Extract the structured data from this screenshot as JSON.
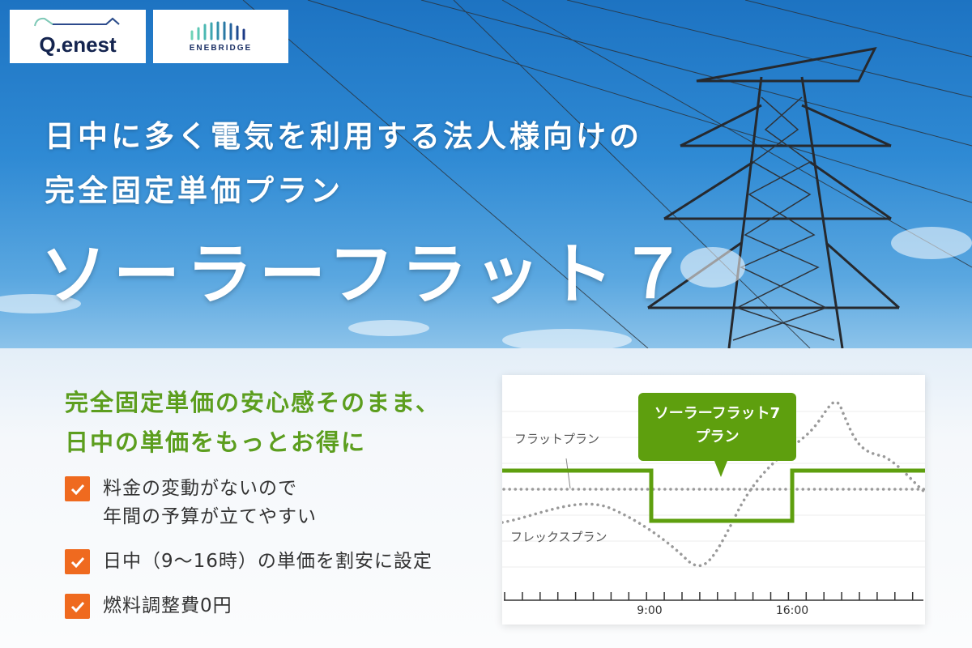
{
  "logos": {
    "qenest": "Q.enest",
    "enebridge": "ENEBRIDGE"
  },
  "headline": {
    "line1": "日中に多く電気を利用する法人様向けの",
    "line2": "完全固定単価プラン"
  },
  "title": "ソーラーフラット７",
  "subheadline": {
    "line1": "完全固定単価の安心感そのまま、",
    "line2": "日中の単価をもっとお得に"
  },
  "features": [
    {
      "line1": "料金の変動がないので",
      "line2": "年間の予算が立てやすい"
    },
    {
      "line1": "日中（9〜16時）の単価を割安に設定"
    },
    {
      "line1": "燃料調整費0円"
    }
  ],
  "colors": {
    "accent_green": "#5c9e1e",
    "check_orange": "#ef6a1f",
    "sky_blue": "#2f8ad4"
  },
  "chart": {
    "callout_line1": "ソーラーフラット7",
    "callout_line2": "プラン",
    "flat_label": "フラットプラン",
    "flex_label": "フレックスプラン",
    "ticks": [
      "9:00",
      "16:00"
    ]
  }
}
